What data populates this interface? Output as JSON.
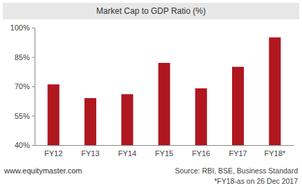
{
  "chart_data": {
    "type": "bar",
    "title": "Market Cap to GDP Ratio (%)",
    "categories": [
      "FY12",
      "FY13",
      "FY14",
      "FY15",
      "FY16",
      "FY17",
      "FY18*"
    ],
    "values": [
      71,
      64,
      66,
      82,
      69,
      80,
      95
    ],
    "color": "#b0171f",
    "ylim": [
      40,
      100
    ],
    "yticks": [
      {
        "value": 40,
        "label": "40%"
      },
      {
        "value": 55,
        "label": "55%"
      },
      {
        "value": 70,
        "label": "70%"
      },
      {
        "value": 85,
        "label": "85%"
      },
      {
        "value": 100,
        "label": "100%"
      }
    ],
    "grid": false,
    "annotations": [
      "www.equitymaster.com",
      "Source: RBI, BSE, Business Standard",
      "*FY18-as on 26 Dec 2017"
    ]
  }
}
